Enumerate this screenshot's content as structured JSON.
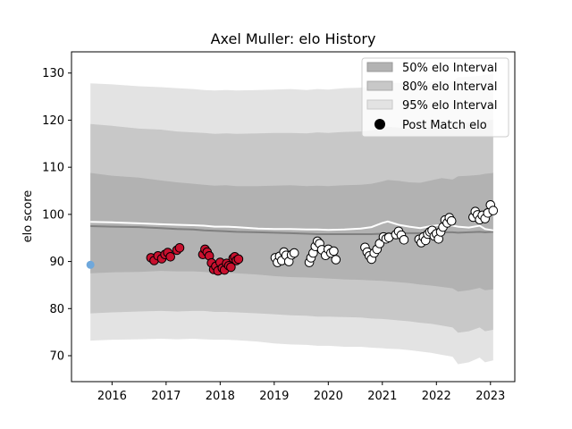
{
  "chart_data": {
    "type": "scatter",
    "title": "Axel Muller: elo History",
    "xlabel": "",
    "ylabel": "elo score",
    "xlim": [
      2015.25,
      2023.45
    ],
    "ylim": [
      64.5,
      134.5
    ],
    "x_ticks": [
      2016,
      2017,
      2018,
      2019,
      2020,
      2021,
      2022,
      2023
    ],
    "y_ticks": [
      70,
      80,
      90,
      100,
      110,
      120,
      130
    ],
    "legend_position": "top-right",
    "colors": {
      "band50": "#b2b2b2",
      "band80": "#c8c8c8",
      "band95": "#e3e3e3",
      "median_line": "#808080",
      "mean_line": "#ffffff",
      "initial_point": "#6fa8dc",
      "red_points": "#c8102e",
      "white_points": "#ffffff",
      "marker_edge": "#000000"
    },
    "legend": [
      {
        "label": "50% elo Interval",
        "kind": "band50"
      },
      {
        "label": "80% elo Interval",
        "kind": "band80"
      },
      {
        "label": "95% elo Interval",
        "kind": "band95"
      },
      {
        "label": "Post Match elo",
        "kind": "marker"
      }
    ],
    "bands": {
      "x": [
        2015.6,
        2016.0,
        2016.5,
        2016.9,
        2017.2,
        2017.5,
        2017.7,
        2017.9,
        2018.1,
        2018.3,
        2018.7,
        2019.0,
        2019.3,
        2019.6,
        2019.8,
        2020.0,
        2020.3,
        2020.6,
        2020.8,
        2021.0,
        2021.1,
        2021.3,
        2021.5,
        2021.7,
        2021.9,
        2022.1,
        2022.3,
        2022.4,
        2022.6,
        2022.8,
        2022.9,
        2023.05
      ],
      "p95_upper": [
        127.8,
        127.6,
        127.2,
        127.0,
        126.8,
        126.6,
        126.4,
        126.3,
        126.4,
        126.3,
        126.4,
        126.5,
        126.6,
        126.4,
        126.6,
        126.5,
        126.8,
        126.9,
        127.1,
        127.6,
        127.9,
        127.9,
        127.6,
        127.5,
        128.1,
        128.6,
        128.3,
        129.1,
        129.2,
        129.4,
        129.6,
        129.8
      ],
      "p95_lower": [
        73.2,
        73.4,
        73.5,
        73.6,
        73.5,
        73.6,
        73.5,
        73.4,
        73.4,
        73.3,
        73.0,
        72.6,
        72.4,
        72.3,
        72.1,
        72.1,
        71.9,
        71.9,
        71.7,
        71.6,
        71.5,
        71.4,
        71.2,
        70.9,
        70.6,
        70.2,
        69.8,
        68.2,
        68.6,
        69.6,
        68.6,
        69.0
      ],
      "p80_upper": [
        119.2,
        118.8,
        118.2,
        118.0,
        117.6,
        117.4,
        117.3,
        117.1,
        117.2,
        117.1,
        117.2,
        117.3,
        117.3,
        117.2,
        117.4,
        117.3,
        117.5,
        117.6,
        117.8,
        118.3,
        118.6,
        118.4,
        118.1,
        118.0,
        118.5,
        119.0,
        118.7,
        119.4,
        119.5,
        119.7,
        119.9,
        120.1
      ],
      "p80_lower": [
        79.0,
        79.2,
        79.4,
        79.5,
        79.4,
        79.5,
        79.5,
        79.3,
        79.3,
        79.2,
        79.0,
        78.8,
        78.6,
        78.5,
        78.3,
        78.3,
        78.2,
        78.1,
        77.9,
        77.8,
        77.7,
        77.5,
        77.3,
        77.0,
        76.8,
        76.4,
        76.0,
        74.9,
        75.2,
        76.0,
        75.2,
        75.5
      ],
      "p50_upper": [
        108.8,
        108.2,
        107.8,
        107.2,
        106.8,
        106.5,
        106.3,
        106.1,
        106.2,
        106.0,
        106.0,
        106.1,
        106.2,
        106.0,
        106.1,
        106.0,
        106.2,
        106.3,
        106.5,
        107.0,
        107.3,
        107.1,
        106.8,
        106.7,
        107.2,
        107.7,
        107.4,
        108.1,
        108.2,
        108.4,
        108.6,
        108.8
      ],
      "p50_lower": [
        87.5,
        87.7,
        87.8,
        88.0,
        87.9,
        87.9,
        87.8,
        87.6,
        87.6,
        87.5,
        87.2,
        86.9,
        86.7,
        86.6,
        86.5,
        86.4,
        86.2,
        86.1,
        86.0,
        85.9,
        85.8,
        85.6,
        85.4,
        85.1,
        84.9,
        84.6,
        84.3,
        83.6,
        83.9,
        84.4,
        83.9,
        84.1
      ],
      "median": [
        97.5,
        97.4,
        97.3,
        97.1,
        96.9,
        96.8,
        96.6,
        96.5,
        96.4,
        96.3,
        96.2,
        96.1,
        96.0,
        95.9,
        95.8,
        95.8,
        95.8,
        95.8,
        95.8,
        95.9,
        96.0,
        96.0,
        96.0,
        96.0,
        96.1,
        96.2,
        96.2,
        96.1,
        96.2,
        96.3,
        96.2,
        96.3
      ],
      "mean": [
        98.4,
        98.3,
        98.1,
        97.9,
        97.8,
        97.7,
        97.6,
        97.4,
        97.4,
        97.3,
        97.0,
        96.9,
        96.9,
        96.8,
        96.8,
        96.7,
        96.8,
        97.0,
        97.3,
        98.2,
        98.5,
        97.8,
        97.4,
        97.1,
        97.5,
        97.8,
        97.6,
        97.4,
        97.2,
        97.6,
        96.9,
        96.6
      ]
    },
    "initial_point": {
      "x": 2015.6,
      "y": 89.3
    },
    "red_points": [
      [
        2016.72,
        90.8
      ],
      [
        2016.78,
        90.2
      ],
      [
        2016.85,
        91.2
      ],
      [
        2016.92,
        90.6
      ],
      [
        2016.98,
        91.5
      ],
      [
        2017.03,
        91.9
      ],
      [
        2017.08,
        91.0
      ],
      [
        2017.2,
        92.4
      ],
      [
        2017.25,
        92.9
      ],
      [
        2017.68,
        91.5
      ],
      [
        2017.72,
        92.6
      ],
      [
        2017.76,
        92.0
      ],
      [
        2017.8,
        91.2
      ],
      [
        2017.84,
        89.7
      ],
      [
        2017.88,
        88.3
      ],
      [
        2017.92,
        89.0
      ],
      [
        2017.96,
        88.0
      ],
      [
        2018.0,
        89.8
      ],
      [
        2018.04,
        88.6
      ],
      [
        2018.08,
        88.2
      ],
      [
        2018.12,
        89.6
      ],
      [
        2018.16,
        89.1
      ],
      [
        2018.2,
        88.8
      ],
      [
        2018.24,
        90.7
      ],
      [
        2018.27,
        91.0
      ],
      [
        2018.3,
        90.2
      ],
      [
        2018.34,
        90.5
      ]
    ],
    "white_points": [
      [
        2019.02,
        90.8
      ],
      [
        2019.06,
        89.8
      ],
      [
        2019.1,
        91.1
      ],
      [
        2019.14,
        90.2
      ],
      [
        2019.18,
        92.0
      ],
      [
        2019.22,
        91.3
      ],
      [
        2019.27,
        90.0
      ],
      [
        2019.32,
        91.4
      ],
      [
        2019.37,
        91.8
      ],
      [
        2019.65,
        89.8
      ],
      [
        2019.68,
        90.8
      ],
      [
        2019.72,
        91.8
      ],
      [
        2019.76,
        93.2
      ],
      [
        2019.8,
        94.3
      ],
      [
        2019.84,
        93.8
      ],
      [
        2019.88,
        92.5
      ],
      [
        2019.95,
        91.3
      ],
      [
        2020.0,
        92.6
      ],
      [
        2020.05,
        91.8
      ],
      [
        2020.1,
        92.2
      ],
      [
        2020.14,
        90.4
      ],
      [
        2020.68,
        93.0
      ],
      [
        2020.72,
        92.0
      ],
      [
        2020.76,
        91.2
      ],
      [
        2020.8,
        90.5
      ],
      [
        2020.85,
        91.8
      ],
      [
        2020.9,
        92.6
      ],
      [
        2020.95,
        93.8
      ],
      [
        2021.02,
        95.2
      ],
      [
        2021.07,
        94.8
      ],
      [
        2021.12,
        95.1
      ],
      [
        2021.25,
        95.7
      ],
      [
        2021.3,
        96.4
      ],
      [
        2021.35,
        95.6
      ],
      [
        2021.4,
        94.6
      ],
      [
        2021.68,
        94.7
      ],
      [
        2021.72,
        94.0
      ],
      [
        2021.76,
        95.2
      ],
      [
        2021.8,
        94.5
      ],
      [
        2021.84,
        95.8
      ],
      [
        2021.88,
        96.3
      ],
      [
        2021.92,
        96.6
      ],
      [
        2021.96,
        95.4
      ],
      [
        2022.0,
        95.9
      ],
      [
        2022.04,
        94.8
      ],
      [
        2022.08,
        96.3
      ],
      [
        2022.12,
        97.3
      ],
      [
        2022.16,
        98.8
      ],
      [
        2022.2,
        98.2
      ],
      [
        2022.24,
        99.3
      ],
      [
        2022.28,
        98.6
      ],
      [
        2022.68,
        99.4
      ],
      [
        2022.72,
        100.6
      ],
      [
        2022.76,
        99.9
      ],
      [
        2022.8,
        98.9
      ],
      [
        2022.85,
        99.8
      ],
      [
        2022.9,
        99.1
      ],
      [
        2022.95,
        100.3
      ],
      [
        2023.0,
        102.0
      ],
      [
        2023.05,
        100.8
      ]
    ]
  }
}
